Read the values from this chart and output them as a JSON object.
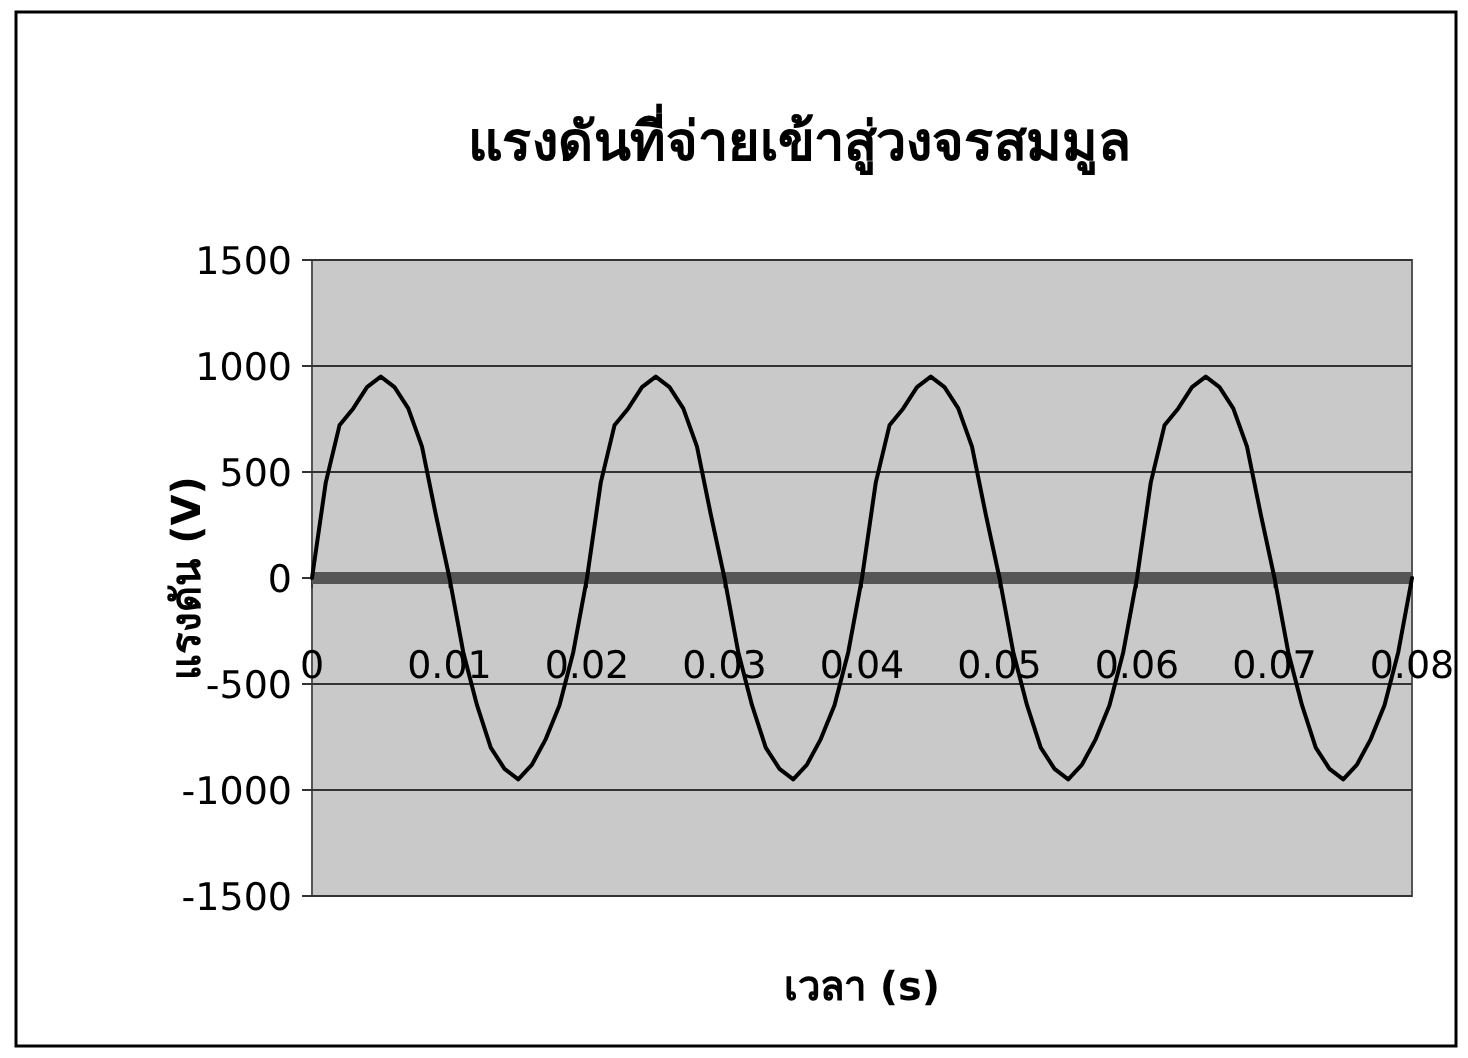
{
  "chart_data": {
    "type": "line",
    "title": "แรงดันที่จ่ายเข้าสู่วงจรสมมูล",
    "xlabel": "เวลา (s)",
    "ylabel": "แรงดัน (V)",
    "x": [
      0,
      0.001,
      0.002,
      0.003,
      0.004,
      0.005,
      0.006,
      0.007,
      0.008,
      0.009,
      0.01,
      0.011,
      0.012,
      0.013,
      0.014,
      0.015,
      0.016,
      0.017,
      0.018,
      0.019,
      0.02,
      0.021,
      0.022,
      0.023,
      0.024,
      0.025,
      0.026,
      0.027,
      0.028,
      0.029,
      0.03,
      0.031,
      0.032,
      0.033,
      0.034,
      0.035,
      0.036,
      0.037,
      0.038,
      0.039,
      0.04,
      0.041,
      0.042,
      0.043,
      0.044,
      0.045,
      0.046,
      0.047,
      0.048,
      0.049,
      0.05,
      0.051,
      0.052,
      0.053,
      0.054,
      0.055,
      0.056,
      0.057,
      0.058,
      0.059,
      0.06,
      0.061,
      0.062,
      0.063,
      0.064,
      0.065,
      0.066,
      0.067,
      0.068,
      0.069,
      0.07,
      0.071,
      0.072,
      0.073,
      0.074,
      0.075,
      0.076,
      0.077,
      0.078,
      0.079,
      0.08
    ],
    "series": [
      {
        "color": "#000000",
        "values": [
          0,
          450,
          720,
          800,
          900,
          950,
          900,
          800,
          620,
          300,
          0,
          -350,
          -600,
          -800,
          -900,
          -950,
          -880,
          -760,
          -600,
          -350,
          0,
          450,
          720,
          800,
          900,
          950,
          900,
          800,
          620,
          300,
          0,
          -350,
          -600,
          -800,
          -900,
          -950,
          -880,
          -760,
          -600,
          -350,
          0,
          450,
          720,
          800,
          900,
          950,
          900,
          800,
          620,
          300,
          0,
          -350,
          -600,
          -800,
          -900,
          -950,
          -880,
          -760,
          -600,
          -350,
          0,
          450,
          720,
          800,
          900,
          950,
          900,
          800,
          620,
          300,
          0,
          -350,
          -600,
          -800,
          -900,
          -950,
          -880,
          -760,
          -600,
          -350,
          0
        ]
      }
    ],
    "xlim": [
      0,
      0.08
    ],
    "ylim": [
      -1500,
      1500
    ],
    "xticks": [
      0,
      0.01,
      0.02,
      0.03,
      0.04,
      0.05,
      0.06,
      0.07,
      0.08
    ],
    "yticks": [
      -1500,
      -1000,
      -500,
      0,
      500,
      1000,
      1500
    ],
    "grid": "y"
  }
}
